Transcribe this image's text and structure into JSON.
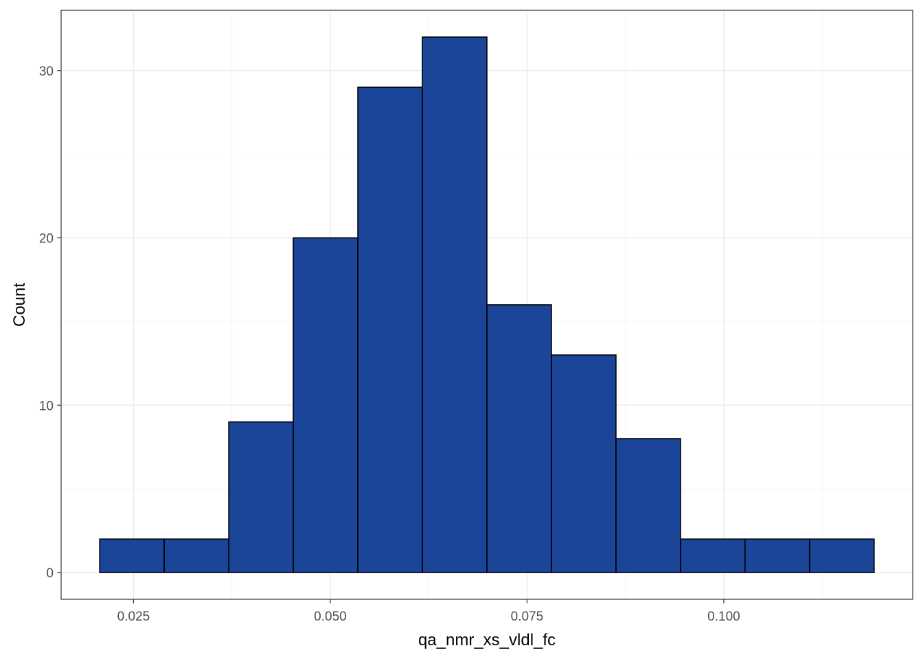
{
  "chart_data": {
    "type": "bar",
    "subtype": "histogram",
    "title": "",
    "xlabel": "qa_nmr_xs_vldl_fc",
    "ylabel": "Count",
    "bins": [
      {
        "x0": 0.0207,
        "x1": 0.0289,
        "count": 2
      },
      {
        "x0": 0.0289,
        "x1": 0.0371,
        "count": 2
      },
      {
        "x0": 0.0371,
        "x1": 0.0453,
        "count": 9
      },
      {
        "x0": 0.0453,
        "x1": 0.0535,
        "count": 20
      },
      {
        "x0": 0.0535,
        "x1": 0.0617,
        "count": 29
      },
      {
        "x0": 0.0617,
        "x1": 0.0699,
        "count": 32
      },
      {
        "x0": 0.0699,
        "x1": 0.0781,
        "count": 16
      },
      {
        "x0": 0.0781,
        "x1": 0.0863,
        "count": 13
      },
      {
        "x0": 0.0863,
        "x1": 0.0945,
        "count": 8
      },
      {
        "x0": 0.0945,
        "x1": 0.1027,
        "count": 2
      },
      {
        "x0": 0.1027,
        "x1": 0.1109,
        "count": 2
      },
      {
        "x0": 0.1109,
        "x1": 0.1191,
        "count": 2
      }
    ],
    "xlim": [
      0.0158,
      0.124
    ],
    "ylim": [
      -1.6,
      33.6
    ],
    "x_ticks": [
      0.025,
      0.05,
      0.075,
      0.1
    ],
    "x_tick_labels": [
      "0.025",
      "0.050",
      "0.075",
      "0.100"
    ],
    "y_ticks": [
      0,
      10,
      20,
      30
    ],
    "y_tick_labels": [
      "0",
      "10",
      "20",
      "30"
    ],
    "x_minor_ticks": [
      0.0375,
      0.0625,
      0.0875,
      0.1125
    ],
    "y_minor_ticks": [
      5,
      15,
      25
    ],
    "grid": true,
    "legend": "none",
    "colors": {
      "bar_fill": "#1a4599",
      "bar_outline": "#000000",
      "grid_major": "#ebebeb",
      "grid_minor": "#f5f5f5",
      "panel_border": "#333333",
      "tick_label": "#4d4d4d",
      "axis_title": "#000000"
    }
  }
}
